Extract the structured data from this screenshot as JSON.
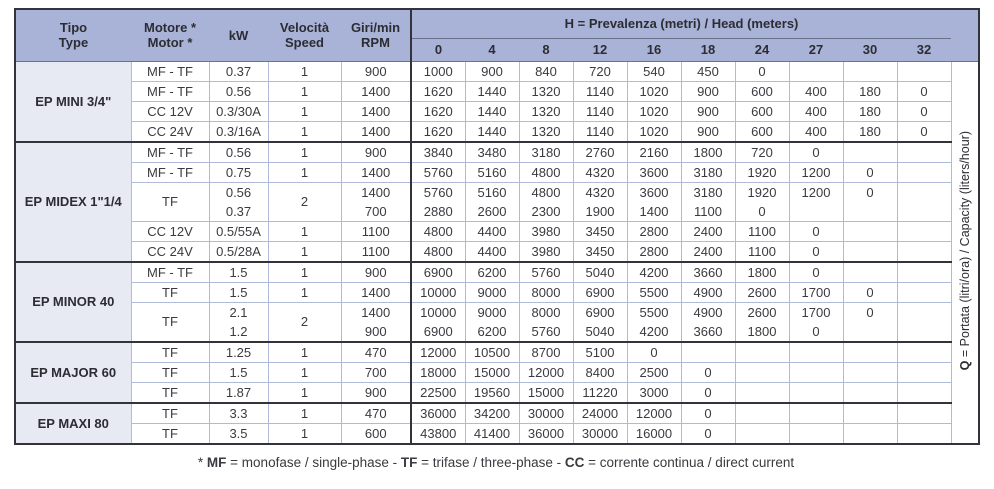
{
  "colors": {
    "header_bg": "#a9b3d7",
    "type_column_bg": "#e7e9f3",
    "grid_light": "#b0bad9",
    "grid_dark": "#33333b",
    "text": "#3a3a40"
  },
  "table": {
    "columns": {
      "type": "Tipo\nType",
      "motor": "Motore *\nMotor *",
      "kw": "kW",
      "speed": "Velocità\nSpeed",
      "rpm": "Giri/min\nRPM"
    },
    "head_title": [
      {
        "t": "H",
        "b": true
      },
      {
        "t": " = Prevalenza (metri) / Head (meters)",
        "b": false
      }
    ],
    "head_values": [
      "0",
      "4",
      "8",
      "12",
      "16",
      "18",
      "24",
      "27",
      "30",
      "32"
    ],
    "q_label": [
      {
        "t": "Q",
        "b": true
      },
      {
        "t": " = Portata (litri/ora) / Capacity (liters/hour)",
        "b": false
      }
    ],
    "groups": [
      {
        "name": "EP MINI 3/4\"",
        "rows": [
          {
            "motor": "MF - TF",
            "kw": [
              "0.37"
            ],
            "speed": "1",
            "rpm": [
              "900"
            ],
            "h": [
              [
                "1000",
                "900",
                "840",
                "720",
                "540",
                "450",
                "0",
                "",
                "",
                ""
              ]
            ]
          },
          {
            "motor": "MF - TF",
            "kw": [
              "0.56"
            ],
            "speed": "1",
            "rpm": [
              "1400"
            ],
            "h": [
              [
                "1620",
                "1440",
                "1320",
                "1140",
                "1020",
                "900",
                "600",
                "400",
                "180",
                "0"
              ]
            ]
          },
          {
            "motor": "CC 12V",
            "kw": [
              "0.3/30A"
            ],
            "speed": "1",
            "rpm": [
              "1400"
            ],
            "h": [
              [
                "1620",
                "1440",
                "1320",
                "1140",
                "1020",
                "900",
                "600",
                "400",
                "180",
                "0"
              ]
            ]
          },
          {
            "motor": "CC 24V",
            "kw": [
              "0.3/16A"
            ],
            "speed": "1",
            "rpm": [
              "1400"
            ],
            "h": [
              [
                "1620",
                "1440",
                "1320",
                "1140",
                "1020",
                "900",
                "600",
                "400",
                "180",
                "0"
              ]
            ]
          }
        ]
      },
      {
        "name": "EP MIDEX 1\"1/4",
        "rows": [
          {
            "motor": "MF - TF",
            "kw": [
              "0.56"
            ],
            "speed": "1",
            "rpm": [
              "900"
            ],
            "h": [
              [
                "3840",
                "3480",
                "3180",
                "2760",
                "2160",
                "1800",
                "720",
                "0",
                "",
                ""
              ]
            ]
          },
          {
            "motor": "MF - TF",
            "kw": [
              "0.75"
            ],
            "speed": "1",
            "rpm": [
              "1400"
            ],
            "h": [
              [
                "5760",
                "5160",
                "4800",
                "4320",
                "3600",
                "3180",
                "1920",
                "1200",
                "0",
                ""
              ]
            ]
          },
          {
            "motor": "TF",
            "kw": [
              "0.56",
              "0.37"
            ],
            "speed": "2",
            "rpm": [
              "1400",
              "700"
            ],
            "h": [
              [
                "5760",
                "5160",
                "4800",
                "4320",
                "3600",
                "3180",
                "1920",
                "1200",
                "0",
                ""
              ],
              [
                "2880",
                "2600",
                "2300",
                "1900",
                "1400",
                "1100",
                "0",
                "",
                "",
                ""
              ]
            ]
          },
          {
            "motor": "CC 12V",
            "kw": [
              "0.5/55A"
            ],
            "speed": "1",
            "rpm": [
              "1100"
            ],
            "h": [
              [
                "4800",
                "4400",
                "3980",
                "3450",
                "2800",
                "2400",
                "1100",
                "0",
                "",
                ""
              ]
            ]
          },
          {
            "motor": "CC 24V",
            "kw": [
              "0.5/28A"
            ],
            "speed": "1",
            "rpm": [
              "1100"
            ],
            "h": [
              [
                "4800",
                "4400",
                "3980",
                "3450",
                "2800",
                "2400",
                "1100",
                "0",
                "",
                ""
              ]
            ]
          }
        ]
      },
      {
        "name": "EP MINOR 40",
        "rows": [
          {
            "motor": "MF - TF",
            "kw": [
              "1.5"
            ],
            "speed": "1",
            "rpm": [
              "900"
            ],
            "h": [
              [
                "6900",
                "6200",
                "5760",
                "5040",
                "4200",
                "3660",
                "1800",
                "0",
                "",
                ""
              ]
            ]
          },
          {
            "motor": "TF",
            "kw": [
              "1.5"
            ],
            "speed": "1",
            "rpm": [
              "1400"
            ],
            "h": [
              [
                "10000",
                "9000",
                "8000",
                "6900",
                "5500",
                "4900",
                "2600",
                "1700",
                "0",
                ""
              ]
            ]
          },
          {
            "motor": "TF",
            "kw": [
              "2.1",
              "1.2"
            ],
            "speed": "2",
            "rpm": [
              "1400",
              "900"
            ],
            "h": [
              [
                "10000",
                "9000",
                "8000",
                "6900",
                "5500",
                "4900",
                "2600",
                "1700",
                "0",
                ""
              ],
              [
                "6900",
                "6200",
                "5760",
                "5040",
                "4200",
                "3660",
                "1800",
                "0",
                "",
                ""
              ]
            ]
          }
        ]
      },
      {
        "name": "EP MAJOR 60",
        "rows": [
          {
            "motor": "TF",
            "kw": [
              "1.25"
            ],
            "speed": "1",
            "rpm": [
              "470"
            ],
            "h": [
              [
                "12000",
                "10500",
                "8700",
                "5100",
                "0",
                "",
                "",
                "",
                "",
                ""
              ]
            ]
          },
          {
            "motor": "TF",
            "kw": [
              "1.5"
            ],
            "speed": "1",
            "rpm": [
              "700"
            ],
            "h": [
              [
                "18000",
                "15000",
                "12000",
                "8400",
                "2500",
                "0",
                "",
                "",
                "",
                ""
              ]
            ]
          },
          {
            "motor": "TF",
            "kw": [
              "1.87"
            ],
            "speed": "1",
            "rpm": [
              "900"
            ],
            "h": [
              [
                "22500",
                "19560",
                "15000",
                "11220",
                "3000",
                "0",
                "",
                "",
                "",
                ""
              ]
            ]
          }
        ]
      },
      {
        "name": "EP MAXI 80",
        "rows": [
          {
            "motor": "TF",
            "kw": [
              "3.3"
            ],
            "speed": "1",
            "rpm": [
              "470"
            ],
            "h": [
              [
                "36000",
                "34200",
                "30000",
                "24000",
                "12000",
                "0",
                "",
                "",
                "",
                ""
              ]
            ]
          },
          {
            "motor": "TF",
            "kw": [
              "3.5"
            ],
            "speed": "1",
            "rpm": [
              "600"
            ],
            "h": [
              [
                "43800",
                "41400",
                "36000",
                "30000",
                "16000",
                "0",
                "",
                "",
                "",
                ""
              ]
            ]
          }
        ]
      }
    ]
  },
  "footnote": [
    {
      "t": "* ",
      "b": false
    },
    {
      "t": "MF",
      "b": true
    },
    {
      "t": " = monofase / single-phase - ",
      "b": false
    },
    {
      "t": "TF",
      "b": true
    },
    {
      "t": " = trifase / three-phase - ",
      "b": false
    },
    {
      "t": "CC",
      "b": true
    },
    {
      "t": " = corrente continua / direct current",
      "b": false
    }
  ]
}
